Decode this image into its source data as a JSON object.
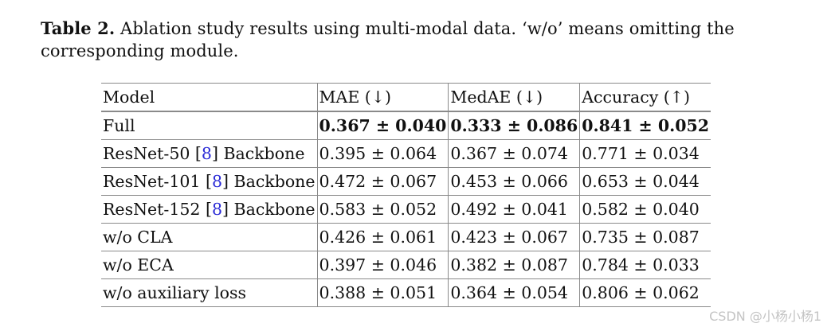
{
  "caption": {
    "label": "Table 2.",
    "text": " Ablation study results using multi-modal data. ‘w/o’ means omitting the corresponding module."
  },
  "table": {
    "headers": [
      "Model",
      "MAE (↓)",
      "MedAE (↓)",
      "Accuracy (↑)"
    ],
    "rows": [
      {
        "model": "Full",
        "mae": "0.367 ± 0.040",
        "medae": "0.333 ± 0.086",
        "acc": "0.841 ± 0.052"
      },
      {
        "model_prefix": "ResNet-50 [",
        "cite": "8",
        "model_suffix": "] Backbone",
        "mae": "0.395 ± 0.064",
        "medae": "0.367 ± 0.074",
        "acc": "0.771 ± 0.034"
      },
      {
        "model_prefix": "ResNet-101 [",
        "cite": "8",
        "model_suffix": "] Backbone",
        "mae": "0.472 ± 0.067",
        "medae": "0.453 ± 0.066",
        "acc": "0.653 ± 0.044"
      },
      {
        "model_prefix": "ResNet-152 [",
        "cite": "8",
        "model_suffix": "] Backbone",
        "mae": "0.583 ± 0.052",
        "medae": "0.492 ± 0.041",
        "acc": "0.582 ± 0.040"
      },
      {
        "model": "w/o CLA",
        "mae": "0.426 ± 0.061",
        "medae": "0.423 ± 0.067",
        "acc": "0.735 ± 0.087"
      },
      {
        "model": "w/o ECA",
        "mae": "0.397 ± 0.046",
        "medae": "0.382 ± 0.087",
        "acc": "0.784 ± 0.033"
      },
      {
        "model": "w/o auxiliary loss",
        "mae": "0.388 ± 0.051",
        "medae": "0.364 ± 0.054",
        "acc": "0.806 ± 0.062"
      }
    ]
  },
  "watermark": "CSDN @小杨小杨1"
}
